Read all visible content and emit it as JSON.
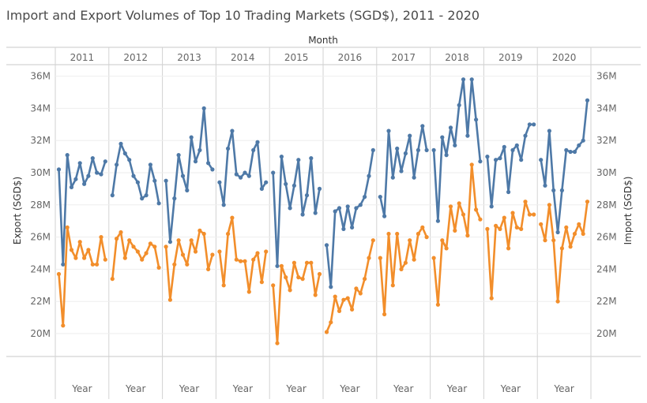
{
  "chart_data": {
    "type": "line",
    "title": "Import and Export Volumes of Top 10 Trading Markets (SGD$), 2011 - 2020",
    "column_header": "Month",
    "years": [
      "2011",
      "2012",
      "2013",
      "2014",
      "2015",
      "2016",
      "2017",
      "2018",
      "2019",
      "2020"
    ],
    "bottom_label": "Year",
    "left_axis_label": "Export (SGD$)",
    "right_axis_label": "Import (SGD$)",
    "ylim": [
      19,
      37
    ],
    "yticks": [
      20,
      22,
      24,
      26,
      28,
      30,
      32,
      34,
      36
    ],
    "ytick_labels": [
      "20M",
      "22M",
      "24M",
      "26M",
      "28M",
      "30M",
      "32M",
      "34M",
      "36M"
    ],
    "grid": true,
    "series": [
      {
        "color": "#4e79a7",
        "values": [
          [
            30.2,
            24.3,
            31.1,
            29.1,
            29.6,
            30.6,
            29.3,
            29.8,
            30.9,
            30.0,
            29.9,
            30.7
          ],
          [
            28.6,
            30.5,
            31.8,
            31.2,
            30.8,
            29.8,
            29.4,
            28.4,
            28.6,
            30.5,
            29.5,
            28.1
          ],
          [
            29.5,
            25.7,
            28.4,
            31.1,
            29.8,
            28.9,
            32.2,
            30.7,
            31.4,
            34.0,
            30.6,
            30.2
          ],
          [
            29.4,
            28.0,
            31.5,
            32.6,
            29.9,
            29.7,
            30.0,
            29.8,
            31.4,
            31.9,
            29.0,
            29.4
          ],
          [
            30.0,
            24.2,
            31.0,
            29.3,
            27.8,
            29.2,
            30.8,
            27.4,
            28.6,
            30.9,
            27.5,
            29.0
          ],
          [
            25.5,
            22.9,
            27.6,
            27.8,
            26.5,
            27.9,
            26.6,
            27.8,
            28.0,
            28.5,
            29.8,
            31.4
          ],
          [
            28.5,
            27.3,
            32.6,
            29.7,
            31.5,
            30.1,
            31.2,
            32.3,
            29.7,
            31.4,
            32.9,
            31.4
          ],
          [
            31.4,
            27.0,
            32.2,
            31.1,
            32.8,
            31.7,
            34.2,
            35.8,
            32.3,
            35.8,
            33.3,
            30.7
          ],
          [
            31.0,
            27.9,
            30.8,
            30.9,
            31.6,
            28.8,
            31.4,
            31.7,
            30.8,
            32.3,
            33.0,
            33.0
          ],
          [
            30.8,
            29.2,
            32.6,
            28.9,
            26.3,
            28.9,
            31.4,
            31.3,
            31.3,
            31.7,
            32.0,
            34.5
          ]
        ]
      },
      {
        "color": "#f28e2b",
        "values": [
          [
            23.7,
            20.5,
            26.6,
            25.2,
            24.7,
            25.7,
            24.7,
            25.2,
            24.3,
            24.3,
            26.0,
            24.6
          ],
          [
            23.4,
            25.9,
            26.3,
            24.7,
            25.8,
            25.4,
            25.1,
            24.6,
            25.0,
            25.6,
            25.4,
            24.1
          ],
          [
            25.4,
            22.1,
            24.3,
            25.8,
            24.9,
            24.3,
            25.8,
            25.1,
            26.4,
            26.2,
            24.0,
            24.9
          ],
          [
            25.1,
            23.0,
            26.2,
            27.2,
            24.6,
            24.5,
            24.5,
            22.6,
            24.6,
            25.0,
            23.2,
            25.1
          ],
          [
            23.0,
            19.4,
            24.2,
            23.5,
            22.7,
            24.4,
            23.5,
            23.4,
            24.4,
            24.4,
            22.4,
            23.7
          ],
          [
            20.1,
            20.7,
            22.3,
            21.4,
            22.1,
            22.2,
            21.5,
            22.8,
            22.5,
            23.4,
            24.7,
            25.8
          ],
          [
            24.7,
            21.2,
            26.2,
            23.0,
            26.2,
            24.0,
            24.4,
            25.8,
            24.6,
            26.2,
            26.6,
            26.0
          ],
          [
            24.7,
            21.8,
            25.8,
            25.3,
            27.9,
            26.4,
            28.1,
            27.4,
            26.1,
            30.5,
            27.7,
            27.1
          ],
          [
            26.5,
            22.2,
            26.7,
            26.5,
            27.2,
            25.3,
            27.5,
            26.6,
            26.5,
            28.2,
            27.4,
            27.4
          ],
          [
            26.8,
            25.8,
            28.0,
            25.8,
            22.0,
            25.3,
            26.6,
            25.4,
            26.2,
            26.8,
            26.2,
            28.2
          ]
        ]
      }
    ]
  }
}
